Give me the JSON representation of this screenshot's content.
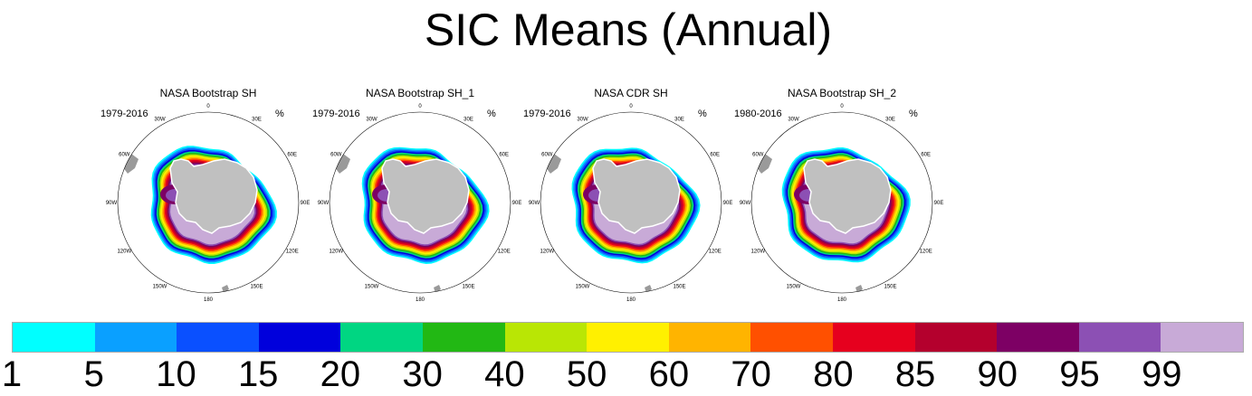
{
  "title": "SIC Means (Annual)",
  "chart_data": {
    "type": "heatmap",
    "title": "SIC Means (Annual)",
    "projection": "south-polar-stereographic",
    "units": "%",
    "panels": [
      {
        "name": "NASA Bootstrap SH",
        "period": "1979-2016"
      },
      {
        "name": "NASA Bootstrap SH_1",
        "period": "1979-2016"
      },
      {
        "name": "NASA CDR SH",
        "period": "1979-2016"
      },
      {
        "name": "NASA Bootstrap SH_2",
        "period": "1980-2016"
      }
    ],
    "grid_labels": [
      "0",
      "30E",
      "60E",
      "90E",
      "120E",
      "150E",
      "180",
      "150W",
      "120W",
      "90W",
      "60W",
      "30W"
    ],
    "colorbar": {
      "levels": [
        "1",
        "5",
        "10",
        "15",
        "20",
        "30",
        "40",
        "50",
        "60",
        "70",
        "80",
        "85",
        "90",
        "95",
        "99"
      ],
      "colors": [
        "#00ffff",
        "#0aa0ff",
        "#0a50ff",
        "#0000dc",
        "#00d682",
        "#22b814",
        "#b9e605",
        "#fff000",
        "#ffb400",
        "#ff5000",
        "#e6001e",
        "#b4002d",
        "#7d0064",
        "#8c50b4",
        "#c8aad7"
      ]
    },
    "land_color": "#c0c0c0"
  }
}
